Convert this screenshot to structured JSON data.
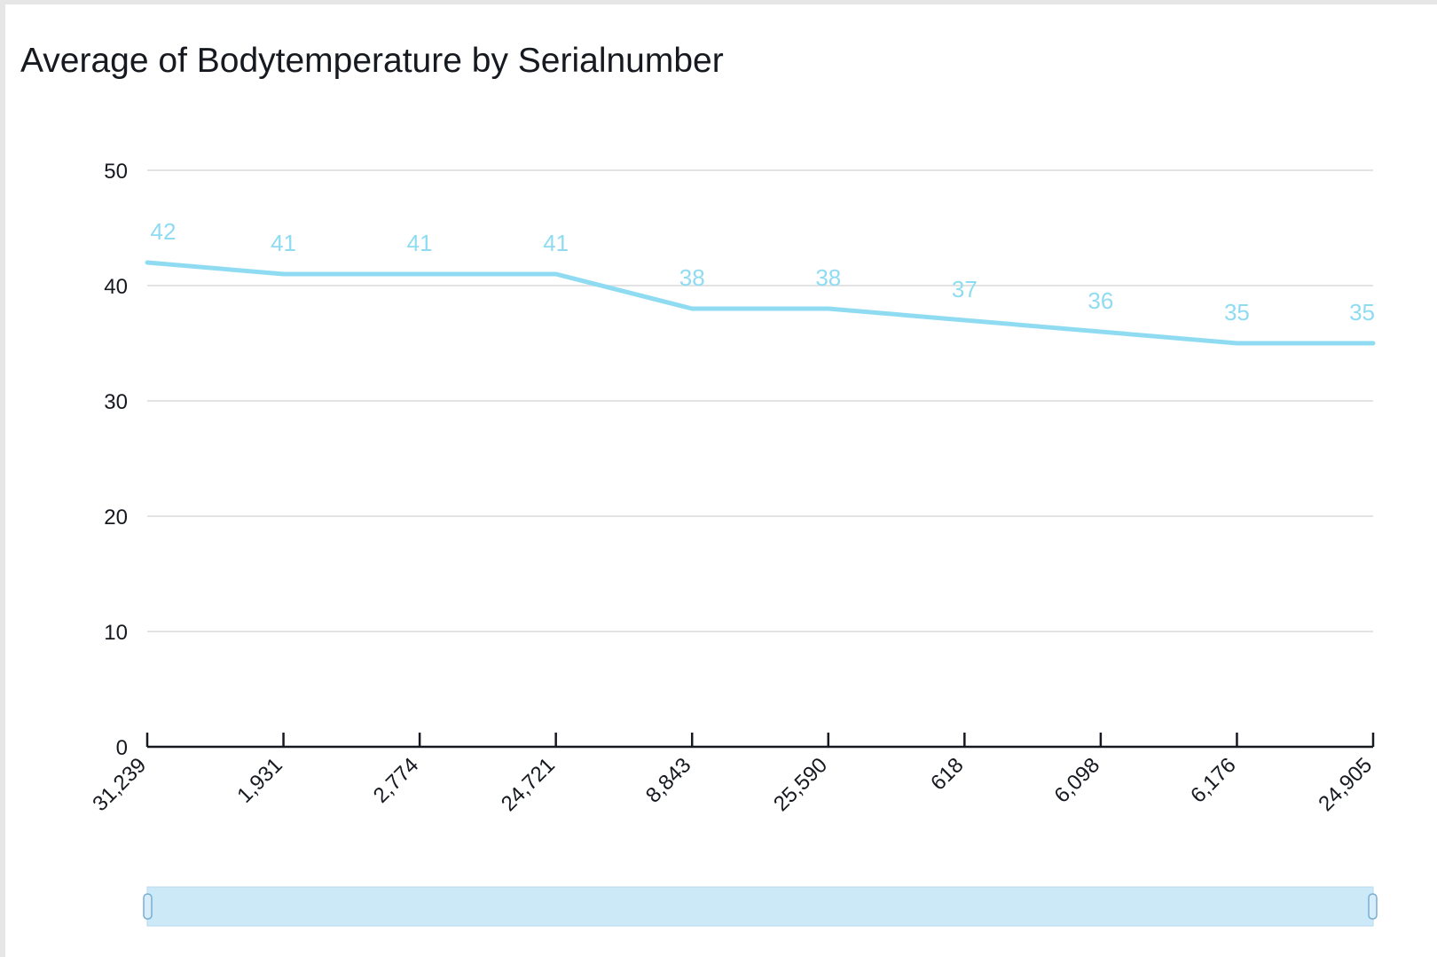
{
  "chart_data": {
    "type": "line",
    "title": "Average of Bodytemperature by Serialnumber",
    "xlabel": "",
    "ylabel": "",
    "categories": [
      "31,239",
      "1,931",
      "2,774",
      "24,721",
      "8,843",
      "25,590",
      "618",
      "6,098",
      "6,176",
      "24,905"
    ],
    "series": [
      {
        "values": [
          42,
          41,
          41,
          41,
          38,
          38,
          37,
          36,
          35,
          35
        ],
        "data_labels": [
          "42",
          "41",
          "41",
          "41",
          "38",
          "38",
          "37",
          "36",
          "35",
          "35"
        ]
      }
    ],
    "ylim": [
      0,
      50
    ],
    "yticks": [
      0,
      10,
      20,
      30,
      40,
      50
    ],
    "ytick_labels": [
      "0",
      "10",
      "20",
      "30",
      "40",
      "50"
    ],
    "grid": true,
    "legend": "none",
    "colors": {
      "line": "#8fdcf2",
      "grid": "#e3e3e3",
      "axis": "#16191f",
      "scrollbar": "#cbe9f7"
    },
    "scrollbar_range": [
      0,
      1
    ]
  }
}
